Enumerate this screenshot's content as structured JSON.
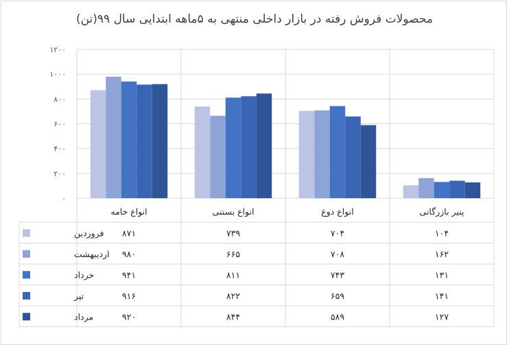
{
  "title": "محصولات فروش رفته در بازار داخلی منتهی به ۵ماهه ابتدایی سال ۹۹(تن)",
  "chart_data": {
    "type": "bar",
    "title": "محصولات فروش رفته در بازار داخلی منتهی به ۵ماهه ابتدایی سال ۹۹(تن)",
    "categories": [
      "انواع خامه",
      "انواع بستنی",
      "انواع دوغ",
      "پنیر بازرگانی"
    ],
    "series": [
      {
        "name": "فروردین",
        "color": "#bcc3e4",
        "values": [
          871,
          739,
          704,
          104
        ],
        "labels": [
          "۸۷۱",
          "۷۳۹",
          "۷۰۴",
          "۱۰۴"
        ]
      },
      {
        "name": "اردیبهشت",
        "color": "#8fa4d6",
        "values": [
          980,
          665,
          708,
          162
        ],
        "labels": [
          "۹۸۰",
          "۶۶۵",
          "۷۰۸",
          "۱۶۲"
        ]
      },
      {
        "name": "خرداد",
        "color": "#4472c4",
        "values": [
          941,
          811,
          743,
          131
        ],
        "labels": [
          "۹۴۱",
          "۸۱۱",
          "۷۴۳",
          "۱۳۱"
        ]
      },
      {
        "name": "تیر",
        "color": "#3a64b4",
        "values": [
          916,
          822,
          659,
          141
        ],
        "labels": [
          "۹۱۶",
          "۸۲۲",
          "۶۵۹",
          "۱۴۱"
        ]
      },
      {
        "name": "مرداد",
        "color": "#2f5597",
        "values": [
          920,
          844,
          589,
          127
        ],
        "labels": [
          "۹۲۰",
          "۸۴۴",
          "۵۸۹",
          "۱۲۷"
        ]
      }
    ],
    "ylim": [
      0,
      1200
    ],
    "yticks": [
      0,
      200,
      400,
      600,
      800,
      1000,
      1200
    ],
    "ytick_labels": [
      "۰",
      "۲۰۰",
      "۴۰۰",
      "۶۰۰",
      "۸۰۰",
      "۱۰۰۰",
      "۱۲۰۰"
    ],
    "grid": true,
    "legend": "data-table"
  }
}
